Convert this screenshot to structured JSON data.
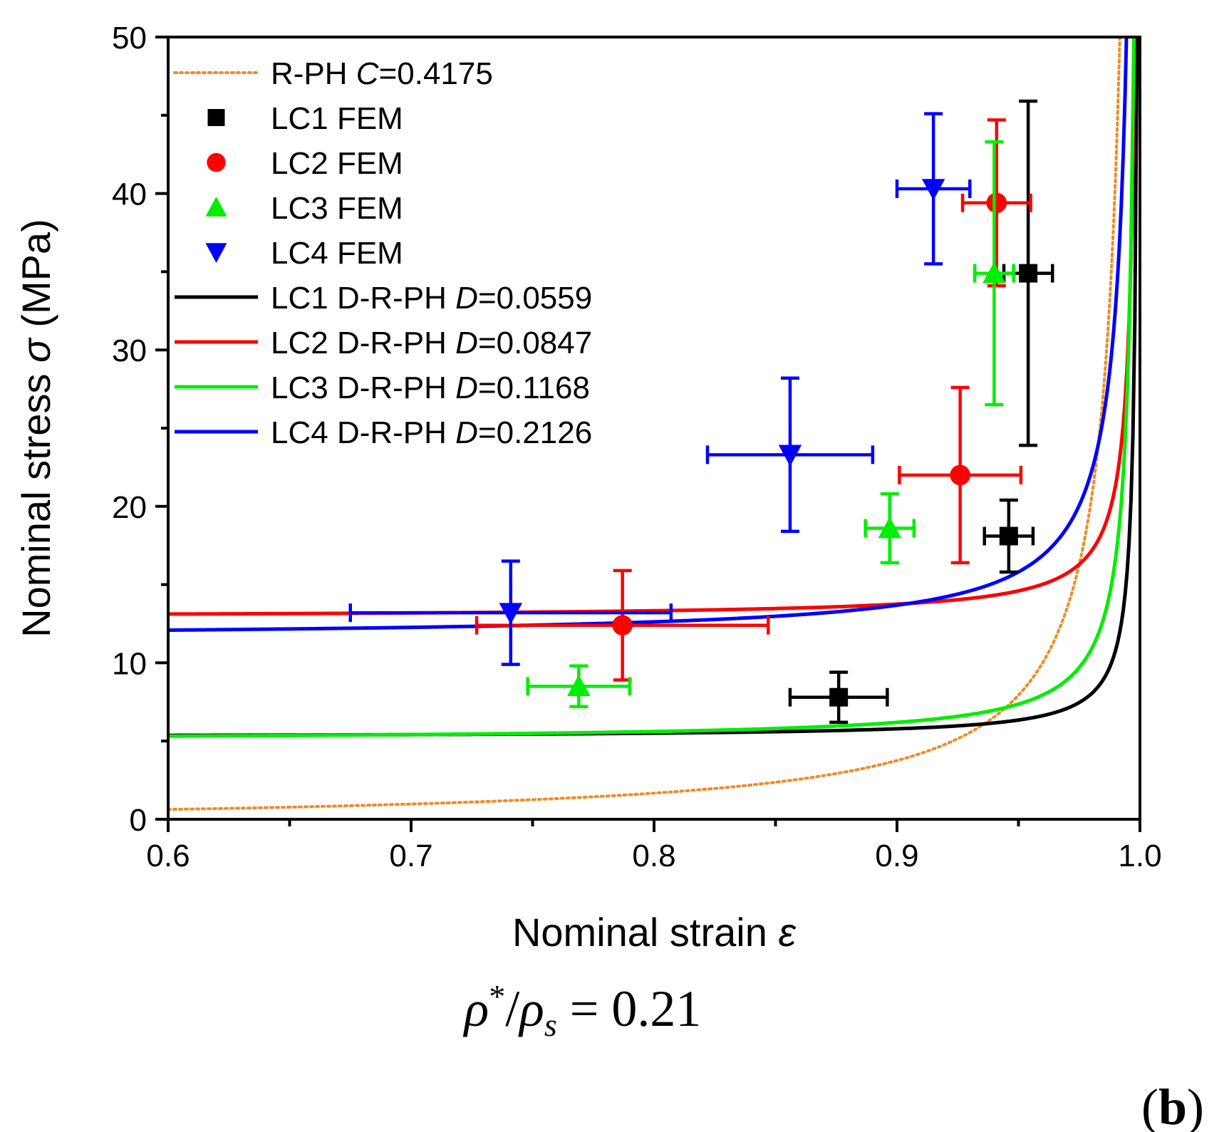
{
  "chart_data": {
    "type": "scatter",
    "xlabel": "Nominal strain",
    "xlabel_symbol": "ε",
    "ylabel_prefix": "Nominal stress",
    "ylabel_symbol": "σ",
    "ylabel_suffix": "(MPa)",
    "xlim": [
      0.6,
      1.0
    ],
    "ylim": [
      0,
      50
    ],
    "xticks": [
      0.6,
      0.7,
      0.8,
      0.9,
      1.0
    ],
    "xtick_labels": [
      "0.6",
      "0.7",
      "0.8",
      "0.9",
      "1.0"
    ],
    "yticks": [
      0,
      10,
      20,
      30,
      40,
      50
    ],
    "ytick_labels": [
      "0",
      "10",
      "20",
      "30",
      "40",
      "50"
    ],
    "legend_position": "top-left",
    "caption": "ρ*/ρs = 0.21",
    "caption_parts": {
      "rho": "ρ",
      "star": "*",
      "slash": "/",
      "s": "s",
      "equals": "=",
      "value": "0.21"
    },
    "panel_label": "(b)",
    "panel_letter": "b",
    "panel_paren_open": "(",
    "panel_paren_close": ")",
    "curves": [
      {
        "name": "R-PH C=0.4175",
        "prefix": "R-PH ",
        "param": "C",
        "value": "=0.4175",
        "color": "#f28a22",
        "style": "dotted",
        "a": 0.0,
        "b": 0.4175
      },
      {
        "name": "LC1 D-R-PH D=0.0559",
        "prefix": "LC1 D-R-PH ",
        "param": "D",
        "value": "=0.0559",
        "color": "#000000",
        "style": "solid",
        "a": 5.28,
        "b": 0.0559
      },
      {
        "name": "LC2 D-R-PH D=0.0847",
        "prefix": "LC2 D-R-PH ",
        "param": "D",
        "value": "=0.0847",
        "color": "#ff0000",
        "style": "solid",
        "a": 12.99,
        "b": 0.0847
      },
      {
        "name": "LC3 D-R-PH D=0.1168",
        "prefix": "LC3 D-R-PH ",
        "param": "D",
        "value": "=0.1168",
        "color": "#00ee00",
        "style": "solid",
        "a": 5.14,
        "b": 0.1168
      },
      {
        "name": "LC4 D-R-PH D=0.2126",
        "prefix": "LC4 D-R-PH ",
        "param": "D",
        "value": "=0.2126",
        "color": "#0000ff",
        "style": "solid",
        "a": 11.77,
        "b": 0.2126
      }
    ],
    "series": [
      {
        "name": "LC1 FEM",
        "marker": "square",
        "color": "#000000",
        "points": [
          {
            "x": 0.876,
            "y": 7.8,
            "xerr": 0.02,
            "yerr": 1.6
          },
          {
            "x": 0.946,
            "y": 18.1,
            "xerr": 0.01,
            "yerr": 2.3
          },
          {
            "x": 0.954,
            "y": 34.9,
            "xerr": 0.01,
            "yerr": 11.0
          }
        ]
      },
      {
        "name": "LC2 FEM",
        "marker": "circle",
        "color": "#ff0000",
        "points": [
          {
            "x": 0.787,
            "y": 12.4,
            "xerr": 0.06,
            "yerr": 3.5
          },
          {
            "x": 0.926,
            "y": 22.0,
            "xerr": 0.025,
            "yerr": 5.6
          },
          {
            "x": 0.941,
            "y": 39.4,
            "xerr": 0.014,
            "yerr": 5.3
          }
        ]
      },
      {
        "name": "LC3 FEM",
        "marker": "triangle-up",
        "color": "#00ee00",
        "points": [
          {
            "x": 0.769,
            "y": 8.5,
            "xerr": 0.021,
            "yerr": 1.3
          },
          {
            "x": 0.897,
            "y": 18.6,
            "xerr": 0.01,
            "yerr": 2.2
          },
          {
            "x": 0.94,
            "y": 34.9,
            "xerr": 0.008,
            "yerr": 8.4
          }
        ]
      },
      {
        "name": "LC4 FEM",
        "marker": "triangle-down",
        "color": "#0000ff",
        "points": [
          {
            "x": 0.741,
            "y": 13.2,
            "xerr": 0.066,
            "yerr": 3.3
          },
          {
            "x": 0.856,
            "y": 23.3,
            "xerr": 0.034,
            "yerr": 4.9
          },
          {
            "x": 0.915,
            "y": 40.3,
            "xerr": 0.015,
            "yerr": 4.8
          }
        ]
      }
    ],
    "legend_order": [
      "curve:0",
      "series:0",
      "series:1",
      "series:2",
      "series:3",
      "curve:1",
      "curve:2",
      "curve:3",
      "curve:4"
    ]
  }
}
